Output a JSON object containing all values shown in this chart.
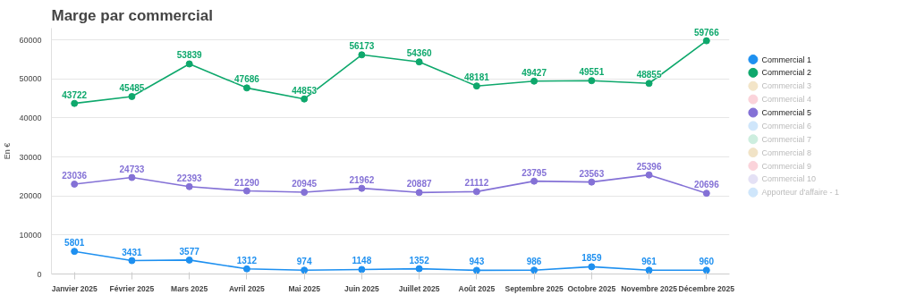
{
  "chart_data": {
    "type": "line",
    "title": "Marge par commercial",
    "ylabel": "En €",
    "categories": [
      "Janvier 2025",
      "Février 2025",
      "Mars 2025",
      "Avril 2025",
      "Mai 2025",
      "Juin 2025",
      "Juillet 2025",
      "Août 2025",
      "Septembre 2025",
      "Octobre 2025",
      "Novembre 2025",
      "Décembre 2025"
    ],
    "series": [
      {
        "name": "Commercial 1",
        "color": "#1e90f0",
        "values": [
          5801,
          3431,
          3577,
          1312,
          974,
          1148,
          1352,
          943,
          986,
          1859,
          961,
          960
        ]
      },
      {
        "name": "Commercial 2",
        "color": "#0ea86c",
        "values": [
          43722,
          45485,
          53839,
          47686,
          44853,
          56173,
          54360,
          48181,
          49427,
          49551,
          48855,
          59766
        ]
      },
      {
        "name": "Commercial 3",
        "color": "#f3e5c8",
        "values": [
          null,
          null,
          null,
          null,
          null,
          null,
          null,
          null,
          null,
          null,
          null,
          null
        ]
      },
      {
        "name": "Commercial 4",
        "color": "#fbd3da",
        "values": [
          null,
          null,
          null,
          null,
          null,
          null,
          null,
          null,
          null,
          null,
          null,
          null
        ]
      },
      {
        "name": "Commercial 5",
        "color": "#8471d6",
        "values": [
          23036,
          24733,
          22393,
          21290,
          20945,
          21962,
          20887,
          21112,
          23795,
          23563,
          25396,
          20696
        ]
      },
      {
        "name": "Commercial 6",
        "color": "#cfe6fb",
        "values": [
          null,
          null,
          null,
          null,
          null,
          null,
          null,
          null,
          null,
          null,
          null,
          null
        ]
      },
      {
        "name": "Commercial 7",
        "color": "#cdeedf",
        "values": [
          null,
          null,
          null,
          null,
          null,
          null,
          null,
          null,
          null,
          null,
          null,
          null
        ]
      },
      {
        "name": "Commercial 8",
        "color": "#f1e3c6",
        "values": [
          null,
          null,
          null,
          null,
          null,
          null,
          null,
          null,
          null,
          null,
          null,
          null
        ]
      },
      {
        "name": "Commercial 9",
        "color": "#fbd3da",
        "values": [
          null,
          null,
          null,
          null,
          null,
          null,
          null,
          null,
          null,
          null,
          null,
          null
        ]
      },
      {
        "name": "Commercial 10",
        "color": "#e4e1f5",
        "values": [
          null,
          null,
          null,
          null,
          null,
          null,
          null,
          null,
          null,
          null,
          null,
          null
        ]
      },
      {
        "name": "Apporteur d'affaire - 1",
        "color": "#cfe6fb",
        "values": [
          null,
          null,
          null,
          null,
          null,
          null,
          null,
          null,
          null,
          null,
          null,
          null
        ]
      }
    ],
    "ylim": [
      0,
      63000
    ],
    "yticks": [
      0,
      10000,
      20000,
      30000,
      40000,
      50000,
      60000
    ],
    "grid": "y",
    "legend": "right",
    "marker": "circle",
    "line_style": "solid",
    "data_labels": true
  }
}
